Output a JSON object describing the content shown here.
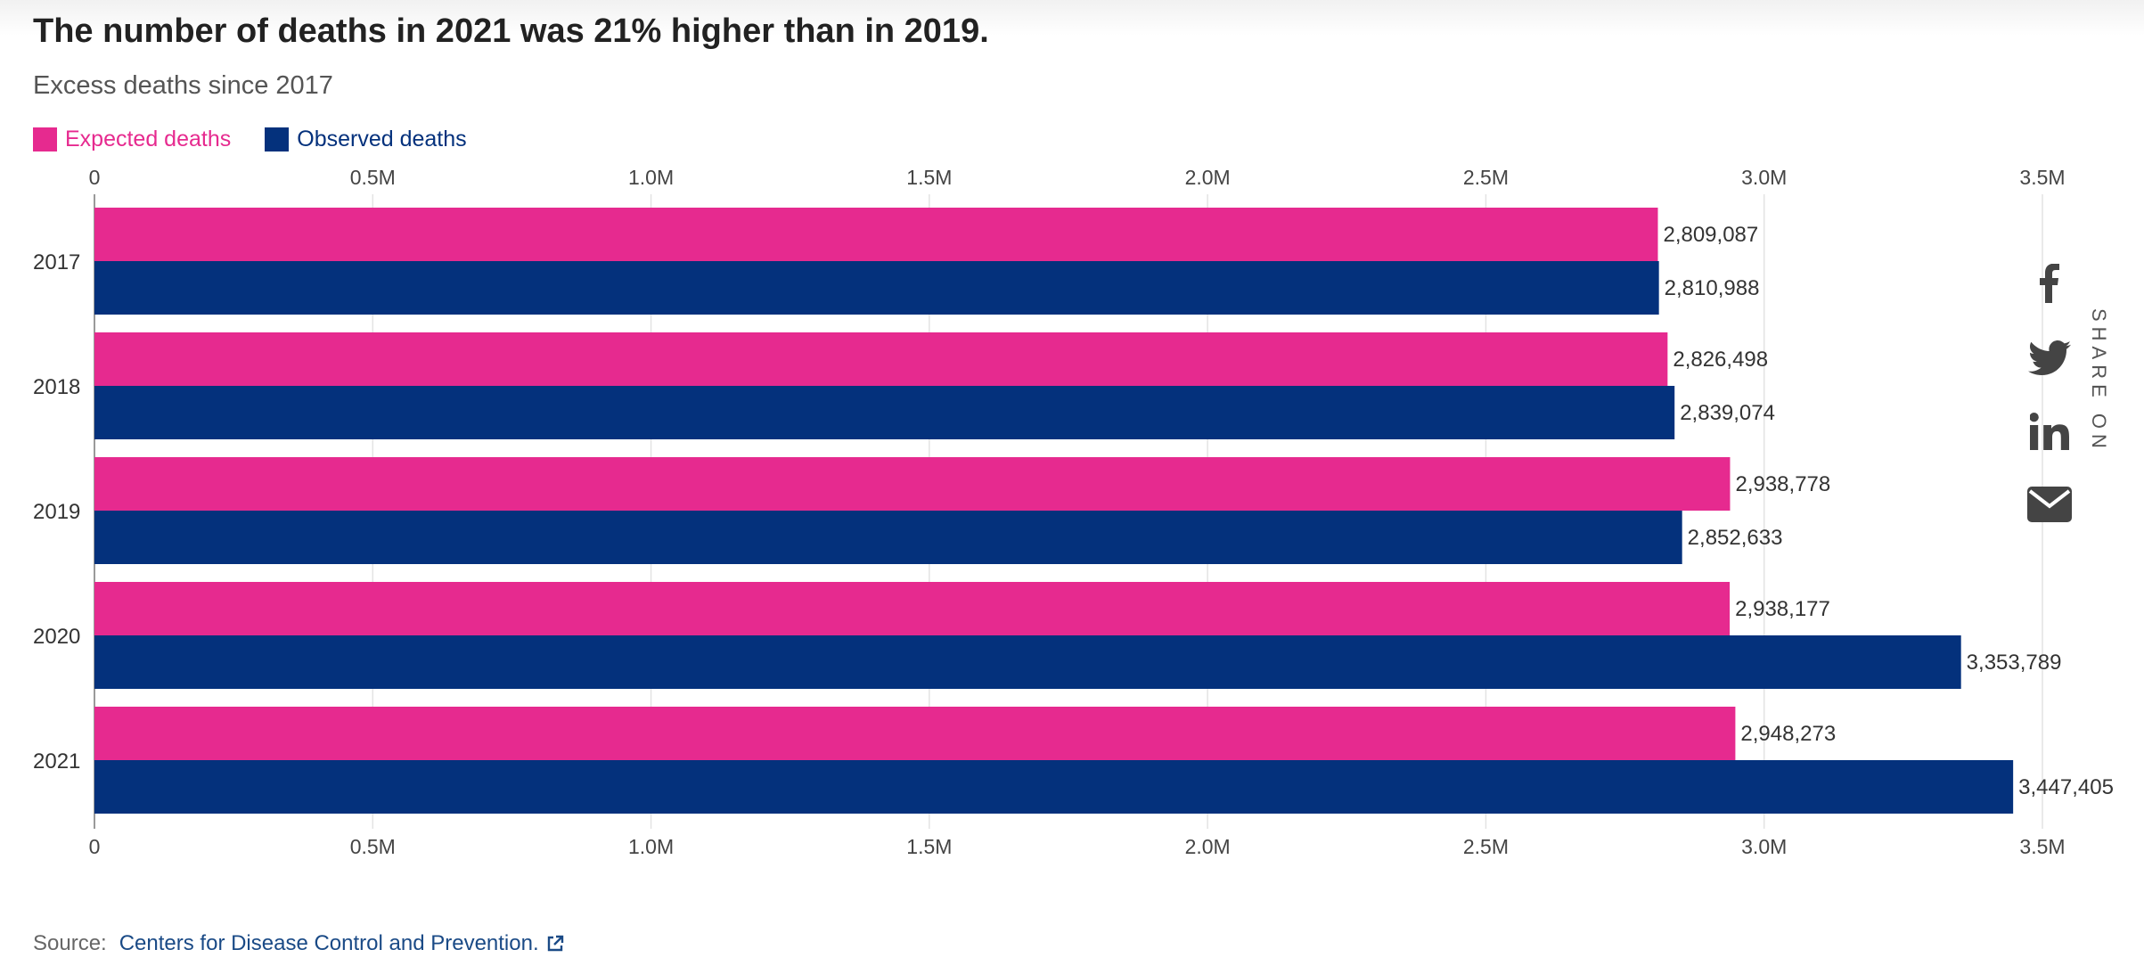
{
  "title": "The number of deaths in 2021 was 21% higher than in 2019.",
  "subtitle": "Excess deaths since 2017",
  "legend": [
    {
      "label": "Expected deaths",
      "color": "#e62a8f"
    },
    {
      "label": "Observed deaths",
      "color": "#04317c"
    }
  ],
  "share": {
    "label": "SHARE ON",
    "icons": [
      "facebook-icon",
      "twitter-icon",
      "linkedin-icon",
      "email-icon"
    ]
  },
  "source": {
    "label": "Source:",
    "link_text": "Centers for Disease Control and Prevention.",
    "icon": "external-link-icon"
  },
  "chart_data": {
    "type": "bar",
    "orientation": "horizontal",
    "title": "The number of deaths in 2021 was 21% higher than in 2019.",
    "subtitle": "Excess deaths since 2017",
    "categories": [
      "2017",
      "2018",
      "2019",
      "2020",
      "2021"
    ],
    "series": [
      {
        "name": "Expected deaths",
        "color": "#e62a8f",
        "values": [
          2809087,
          2826498,
          2938778,
          2938177,
          2948273
        ],
        "labels": [
          "2,809,087",
          "2,826,498",
          "2,938,778",
          "2,938,177",
          "2,948,273"
        ]
      },
      {
        "name": "Observed deaths",
        "color": "#04317c",
        "values": [
          2810988,
          2839074,
          2852633,
          3353789,
          3447405
        ],
        "labels": [
          "2,810,988",
          "2,839,074",
          "2,852,633",
          "3,353,789",
          "3,447,405"
        ]
      }
    ],
    "xlim": [
      0,
      3500000
    ],
    "xticks": [
      0,
      500000,
      1000000,
      1500000,
      2000000,
      2500000,
      3000000,
      3500000
    ],
    "xtick_labels": [
      "0",
      "0.5M",
      "1.0M",
      "1.5M",
      "2.0M",
      "2.5M",
      "3.0M",
      "3.5M"
    ],
    "axis_labels_top_and_bottom": true,
    "grid": "vertical",
    "legend_position": "top-left"
  }
}
